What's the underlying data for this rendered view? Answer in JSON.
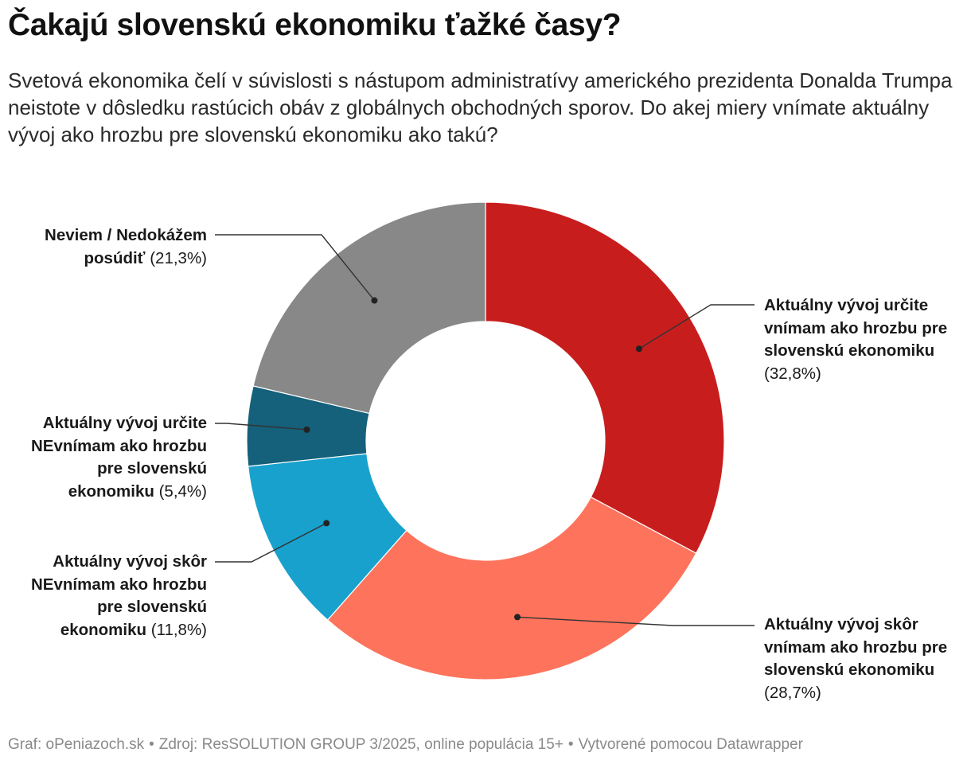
{
  "title": "Čakajú slovenskú ekonomiku ťažké časy?",
  "subtitle": "Svetová ekonomika čelí v súvislosti s nástupom administratívy amerického prezidenta Donalda Trumpa neistote v dôsledku rastúcich obáv z globálnych obchodných sporov. Do akej miery vnímate aktuálny vývoj ako hrozbu pre slovenskú ekonomiku ako takú?",
  "footer": {
    "graf": "Graf: oPeniazoch.sk",
    "zdroj": "Zdroj: ResSOLUTION GROUP 3/2025, online populácia 15+",
    "tool": "Vytvorené pomocou Datawrapper"
  },
  "chart_data": {
    "type": "pie",
    "variant": "donut",
    "categories": [
      "Aktuálny vývoj určite vnímam ako hrozbu pre slovenskú ekonomiku",
      "Aktuálny vývoj skôr vnímam ako hrozbu pre slovenskú ekonomiku",
      "Aktuálny vývoj skôr NEvnímam ako hrozbu pre slovenskú ekonomiku",
      "Aktuálny vývoj určite NEvnímam ako hrozbu pre slovenskú ekonomiku",
      "Neviem / Nedokážem posúdiť"
    ],
    "values": [
      32.8,
      28.7,
      11.8,
      5.4,
      21.3
    ],
    "value_labels": [
      "(32,8%)",
      "(28,7%)",
      "(11,8%)",
      "(5,4%)",
      "(21,3%)"
    ],
    "colors": [
      "#c71e1d",
      "#fd735c",
      "#18a1cd",
      "#15607a",
      "#888888"
    ],
    "start": "top",
    "direction": "clockwise",
    "legend": "none"
  }
}
